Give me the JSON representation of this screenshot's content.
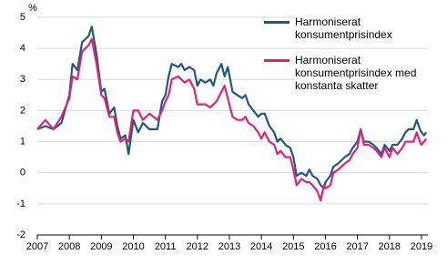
{
  "chart_data": {
    "type": "line",
    "y_label": "%",
    "x": [
      2007.0,
      2007.25,
      2007.5,
      2007.75,
      2008.0,
      2008.1,
      2008.25,
      2008.4,
      2008.6,
      2008.7,
      2008.85,
      2009.0,
      2009.1,
      2009.25,
      2009.4,
      2009.5,
      2009.6,
      2009.75,
      2009.85,
      2010.0,
      2010.15,
      2010.3,
      2010.5,
      2010.75,
      2010.9,
      2011.0,
      2011.1,
      2011.2,
      2011.4,
      2011.5,
      2011.6,
      2011.75,
      2011.9,
      2012.0,
      2012.1,
      2012.25,
      2012.4,
      2012.5,
      2012.6,
      2012.75,
      2012.85,
      2012.95,
      2013.1,
      2013.25,
      2013.4,
      2013.5,
      2013.6,
      2013.75,
      2013.9,
      2014.0,
      2014.1,
      2014.25,
      2014.4,
      2014.5,
      2014.6,
      2014.75,
      2014.9,
      2015.0,
      2015.1,
      2015.25,
      2015.4,
      2015.5,
      2015.6,
      2015.75,
      2015.85,
      2015.95,
      2016.0,
      2016.15,
      2016.25,
      2016.4,
      2016.5,
      2016.6,
      2016.75,
      2016.85,
      2017.0,
      2017.1,
      2017.2,
      2017.35,
      2017.5,
      2017.6,
      2017.75,
      2017.85,
      2018.0,
      2018.1,
      2018.25,
      2018.4,
      2018.5,
      2018.6,
      2018.75,
      2018.85,
      2018.95,
      2019.0,
      2019.08,
      2019.15
    ],
    "series": [
      {
        "name": "Harmoniserat konsumentprisindex",
        "color": "#1d5a7c",
        "values": [
          1.4,
          1.5,
          1.4,
          1.6,
          2.5,
          3.5,
          3.3,
          4.2,
          4.4,
          4.7,
          3.8,
          2.6,
          2.7,
          1.9,
          2.1,
          1.5,
          1.1,
          1.2,
          0.6,
          1.7,
          1.3,
          1.6,
          1.4,
          1.4,
          2.3,
          2.5,
          3.1,
          3.5,
          3.4,
          3.5,
          3.3,
          3.4,
          3.3,
          2.8,
          3.0,
          2.9,
          3.0,
          2.8,
          3.2,
          3.5,
          3.1,
          3.4,
          2.6,
          2.5,
          2.4,
          2.5,
          2.2,
          2.0,
          1.8,
          1.9,
          1.9,
          1.5,
          1.3,
          1.0,
          1.1,
          0.9,
          0.8,
          0.5,
          -0.1,
          0.0,
          -0.1,
          0.1,
          -0.1,
          -0.2,
          -0.4,
          -0.5,
          -0.3,
          -0.1,
          0.2,
          0.3,
          0.4,
          0.5,
          0.6,
          0.8,
          1.0,
          1.4,
          1.0,
          1.0,
          0.9,
          0.8,
          0.6,
          0.9,
          0.7,
          0.9,
          0.9,
          1.1,
          1.3,
          1.4,
          1.4,
          1.7,
          1.4,
          1.3,
          1.2,
          1.3
        ]
      },
      {
        "name": "Harmoniserat konsumentprisindex med konstanta skatter",
        "color": "#e0217e",
        "values": [
          1.4,
          1.7,
          1.4,
          1.8,
          2.4,
          3.1,
          3.0,
          3.9,
          4.1,
          4.3,
          3.5,
          2.5,
          2.4,
          1.8,
          1.8,
          1.3,
          1.0,
          1.1,
          1.0,
          2.0,
          2.0,
          1.7,
          1.9,
          1.7,
          2.0,
          2.3,
          2.5,
          3.0,
          3.1,
          3.0,
          2.9,
          3.0,
          2.7,
          2.2,
          2.2,
          2.2,
          2.1,
          2.2,
          2.3,
          2.6,
          2.8,
          2.4,
          1.8,
          1.7,
          1.7,
          1.8,
          1.6,
          1.5,
          1.3,
          1.1,
          1.3,
          1.0,
          0.9,
          0.6,
          0.7,
          0.5,
          0.5,
          0.1,
          -0.4,
          -0.2,
          -0.3,
          -0.3,
          -0.4,
          -0.6,
          -0.9,
          -0.4,
          -0.5,
          -0.4,
          0.0,
          0.1,
          0.2,
          0.3,
          0.4,
          0.6,
          0.8,
          1.4,
          0.9,
          0.9,
          0.8,
          0.7,
          0.5,
          0.8,
          0.5,
          0.8,
          0.6,
          0.8,
          1.0,
          1.0,
          1.0,
          1.3,
          1.0,
          0.9,
          1.0,
          1.1
        ]
      }
    ],
    "xlim": [
      2007,
      2019.2
    ],
    "xticks": [
      2007,
      2008,
      2009,
      2010,
      2011,
      2012,
      2013,
      2014,
      2015,
      2016,
      2017,
      2018,
      2019
    ],
    "ylim": [
      -2,
      5
    ],
    "yticks": [
      -2,
      -1,
      0,
      1,
      2,
      3,
      4,
      5
    ],
    "grid": true
  }
}
